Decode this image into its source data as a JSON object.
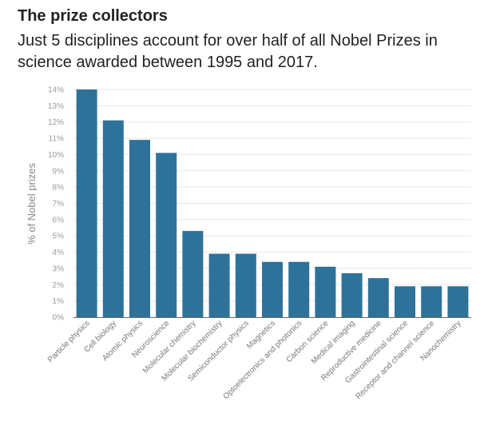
{
  "header": {
    "title": "The prize collectors",
    "subtitle": "Just 5 disciplines account for over half of all Nobel Prizes in science awarded between 1995 and 2017."
  },
  "colors": {
    "bar": "#2e729a",
    "grid": "#e8e8e8",
    "axis": "#666666"
  },
  "chart_data": {
    "type": "bar",
    "title": "The prize collectors",
    "subtitle": "Just 5 disciplines account for over half of all Nobel Prizes in science awarded between 1995 and 2017.",
    "xlabel": "",
    "ylabel": "% of Nobel prizes",
    "ylim": [
      0,
      14
    ],
    "grid": true,
    "yticks": [
      "0%",
      "1%",
      "2%",
      "3%",
      "4%",
      "5%",
      "6%",
      "7%",
      "8%",
      "9%",
      "10%",
      "11%",
      "12%",
      "13%",
      "14%"
    ],
    "categories": [
      "Particle physics",
      "Cell biology",
      "Atomic physics",
      "Neuroscience",
      "Molecular chemistry",
      "Molecular biochemistry",
      "Semiconductor physics",
      "Magnetics",
      "Optoelectronics and photonics",
      "Carbon science",
      "Medical imaging",
      "Reproductive medicine",
      "Gastrointestinal science",
      "Receptor and channel science",
      "Nanochemistry"
    ],
    "values": [
      14.0,
      12.1,
      10.9,
      10.1,
      5.3,
      3.9,
      3.9,
      3.4,
      3.4,
      3.1,
      2.7,
      2.4,
      1.9,
      1.9,
      1.9
    ]
  }
}
